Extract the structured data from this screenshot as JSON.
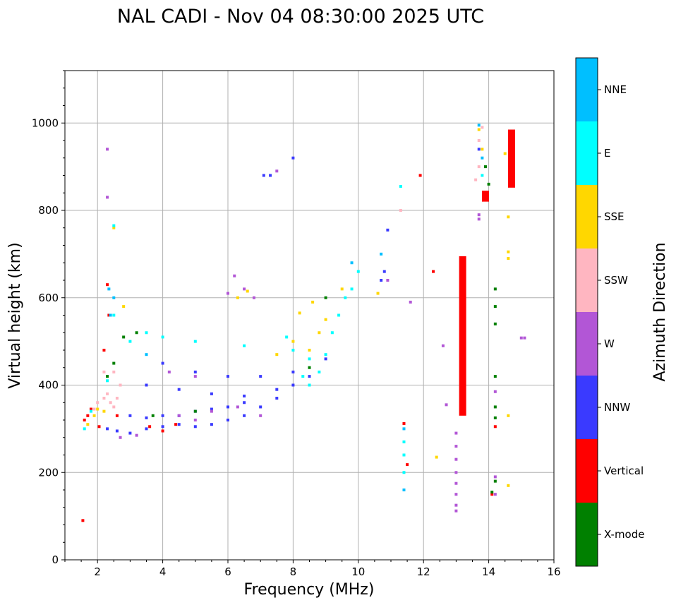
{
  "chart_data": {
    "type": "scatter",
    "title": "NAL CADI - Nov 04 08:30:00 2025 UTC",
    "xlabel": "Frequency (MHz)",
    "ylabel": "Virtual height (km)",
    "xlim": [
      1,
      16
    ],
    "ylim": [
      0,
      1120
    ],
    "xticks": [
      2,
      4,
      6,
      8,
      10,
      12,
      14,
      16
    ],
    "yticks": [
      0,
      200,
      400,
      600,
      800,
      1000
    ],
    "grid": true,
    "colorbar": {
      "label": "Azimuth Direction",
      "categories": [
        {
          "name": "X-mode",
          "color": "#008000"
        },
        {
          "name": "Vertical",
          "color": "#ff0000"
        },
        {
          "name": "NNW",
          "color": "#3a3aff"
        },
        {
          "name": "W",
          "color": "#b256d6"
        },
        {
          "name": "SSW",
          "color": "#ffb6c1"
        },
        {
          "name": "SSE",
          "color": "#ffd700"
        },
        {
          "name": "E",
          "color": "#00ffff"
        },
        {
          "name": "NNE",
          "color": "#00bfff"
        }
      ]
    },
    "series": [
      {
        "name": "Vertical",
        "points": [
          [
            1.55,
            90
          ],
          [
            1.6,
            320
          ],
          [
            1.7,
            330
          ],
          [
            1.8,
            345
          ],
          [
            2.05,
            305
          ],
          [
            2.3,
            630
          ],
          [
            2.35,
            560
          ],
          [
            2.2,
            480
          ],
          [
            2.6,
            330
          ],
          [
            3.6,
            305
          ],
          [
            4.0,
            295
          ],
          [
            4.4,
            310
          ],
          [
            11.4,
            312
          ],
          [
            11.5,
            218
          ],
          [
            11.9,
            880
          ],
          [
            12.3,
            660
          ],
          [
            14.2,
            305
          ],
          [
            14.1,
            150
          ]
        ],
        "bars": [
          [
            13.2,
            330,
            695
          ],
          [
            14.7,
            852,
            985
          ],
          [
            13.9,
            820,
            845
          ]
        ]
      },
      {
        "name": "NNW",
        "points": [
          [
            2.3,
            300
          ],
          [
            2.6,
            295
          ],
          [
            3.0,
            290
          ],
          [
            3.5,
            300
          ],
          [
            4.0,
            305
          ],
          [
            4.5,
            310
          ],
          [
            5.0,
            305
          ],
          [
            5.5,
            310
          ],
          [
            6.0,
            320
          ],
          [
            6.5,
            330
          ],
          [
            7.0,
            350
          ],
          [
            7.5,
            370
          ],
          [
            8.0,
            400
          ],
          [
            3.0,
            330
          ],
          [
            3.5,
            325
          ],
          [
            4.0,
            330
          ],
          [
            4.5,
            330
          ],
          [
            5.0,
            340
          ],
          [
            5.5,
            345
          ],
          [
            6.0,
            350
          ],
          [
            6.5,
            360
          ],
          [
            3.5,
            400
          ],
          [
            4.5,
            390
          ],
          [
            5.5,
            380
          ],
          [
            6.5,
            375
          ],
          [
            7.5,
            390
          ],
          [
            8.5,
            420
          ],
          [
            4.0,
            450
          ],
          [
            5.0,
            430
          ],
          [
            6.0,
            420
          ],
          [
            7.0,
            420
          ],
          [
            8.0,
            430
          ],
          [
            9.0,
            460
          ],
          [
            10.7,
            640
          ],
          [
            10.8,
            660
          ],
          [
            10.9,
            755
          ],
          [
            7.1,
            880
          ],
          [
            7.3,
            880
          ],
          [
            8.0,
            920
          ],
          [
            13.7,
            940
          ]
        ]
      },
      {
        "name": "W",
        "points": [
          [
            2.3,
            940
          ],
          [
            2.3,
            830
          ],
          [
            2.7,
            280
          ],
          [
            3.2,
            285
          ],
          [
            4.5,
            330
          ],
          [
            5.0,
            320
          ],
          [
            5.5,
            340
          ],
          [
            6.3,
            350
          ],
          [
            7.0,
            330
          ],
          [
            4.2,
            430
          ],
          [
            5.0,
            420
          ],
          [
            6.0,
            610
          ],
          [
            6.2,
            650
          ],
          [
            6.5,
            620
          ],
          [
            6.8,
            600
          ],
          [
            7.5,
            890
          ],
          [
            10.9,
            640
          ],
          [
            11.6,
            590
          ],
          [
            12.6,
            490
          ],
          [
            12.7,
            355
          ],
          [
            13.0,
            290
          ],
          [
            13.0,
            260
          ],
          [
            13.0,
            230
          ],
          [
            13.0,
            200
          ],
          [
            13.0,
            175
          ],
          [
            13.0,
            150
          ],
          [
            13.0,
            125
          ],
          [
            13.0,
            112
          ],
          [
            13.7,
            790
          ],
          [
            13.7,
            780
          ],
          [
            14.2,
            385
          ],
          [
            14.2,
            190
          ],
          [
            14.2,
            150
          ],
          [
            15.0,
            508
          ],
          [
            15.1,
            508
          ]
        ]
      },
      {
        "name": "SSW",
        "points": [
          [
            1.9,
            345
          ],
          [
            2.0,
            360
          ],
          [
            2.2,
            370
          ],
          [
            2.3,
            380
          ],
          [
            2.4,
            360
          ],
          [
            2.5,
            350
          ],
          [
            2.6,
            370
          ],
          [
            2.7,
            400
          ],
          [
            2.5,
            430
          ],
          [
            2.2,
            430
          ],
          [
            11.3,
            800
          ],
          [
            13.8,
            990
          ],
          [
            13.7,
            960
          ],
          [
            13.7,
            900
          ],
          [
            13.6,
            870
          ]
        ]
      },
      {
        "name": "SSE",
        "points": [
          [
            1.7,
            310
          ],
          [
            1.9,
            330
          ],
          [
            2.0,
            345
          ],
          [
            2.2,
            340
          ],
          [
            2.5,
            760
          ],
          [
            2.8,
            580
          ],
          [
            6.3,
            600
          ],
          [
            6.6,
            615
          ],
          [
            7.5,
            470
          ],
          [
            8.0,
            500
          ],
          [
            8.2,
            565
          ],
          [
            8.5,
            480
          ],
          [
            8.8,
            520
          ],
          [
            9.0,
            550
          ],
          [
            8.6,
            590
          ],
          [
            9.5,
            620
          ],
          [
            10.6,
            610
          ],
          [
            12.4,
            235
          ],
          [
            13.7,
            985
          ],
          [
            13.8,
            940
          ],
          [
            14.5,
            930
          ],
          [
            14.6,
            785
          ],
          [
            14.6,
            705
          ],
          [
            14.6,
            690
          ],
          [
            14.6,
            330
          ],
          [
            14.6,
            170
          ]
        ]
      },
      {
        "name": "E",
        "points": [
          [
            1.6,
            300
          ],
          [
            1.8,
            340
          ],
          [
            2.3,
            410
          ],
          [
            2.5,
            560
          ],
          [
            2.5,
            765
          ],
          [
            3.0,
            500
          ],
          [
            3.5,
            520
          ],
          [
            4.0,
            510
          ],
          [
            5.0,
            500
          ],
          [
            6.5,
            490
          ],
          [
            7.8,
            510
          ],
          [
            8.0,
            480
          ],
          [
            8.3,
            420
          ],
          [
            8.5,
            400
          ],
          [
            8.5,
            460
          ],
          [
            8.8,
            430
          ],
          [
            9.0,
            470
          ],
          [
            9.2,
            520
          ],
          [
            9.4,
            560
          ],
          [
            9.6,
            600
          ],
          [
            9.8,
            620
          ],
          [
            10.0,
            660
          ],
          [
            11.3,
            855
          ],
          [
            11.4,
            270
          ],
          [
            11.4,
            240
          ],
          [
            11.4,
            200
          ],
          [
            13.8,
            880
          ]
        ]
      },
      {
        "name": "NNE",
        "points": [
          [
            2.35,
            620
          ],
          [
            2.4,
            560
          ],
          [
            2.5,
            600
          ],
          [
            3.5,
            470
          ],
          [
            9.8,
            680
          ],
          [
            10.7,
            700
          ],
          [
            11.4,
            300
          ],
          [
            11.4,
            160
          ],
          [
            13.7,
            995
          ],
          [
            13.8,
            920
          ]
        ]
      },
      {
        "name": "X-mode",
        "points": [
          [
            2.3,
            420
          ],
          [
            2.5,
            450
          ],
          [
            2.8,
            510
          ],
          [
            3.2,
            520
          ],
          [
            3.7,
            330
          ],
          [
            5.0,
            340
          ],
          [
            8.5,
            440
          ],
          [
            9.0,
            600
          ],
          [
            13.9,
            900
          ],
          [
            14.0,
            860
          ],
          [
            14.2,
            620
          ],
          [
            14.2,
            580
          ],
          [
            14.2,
            540
          ],
          [
            14.2,
            420
          ],
          [
            14.2,
            350
          ],
          [
            14.2,
            325
          ],
          [
            14.2,
            180
          ],
          [
            14.1,
            155
          ]
        ]
      }
    ]
  }
}
